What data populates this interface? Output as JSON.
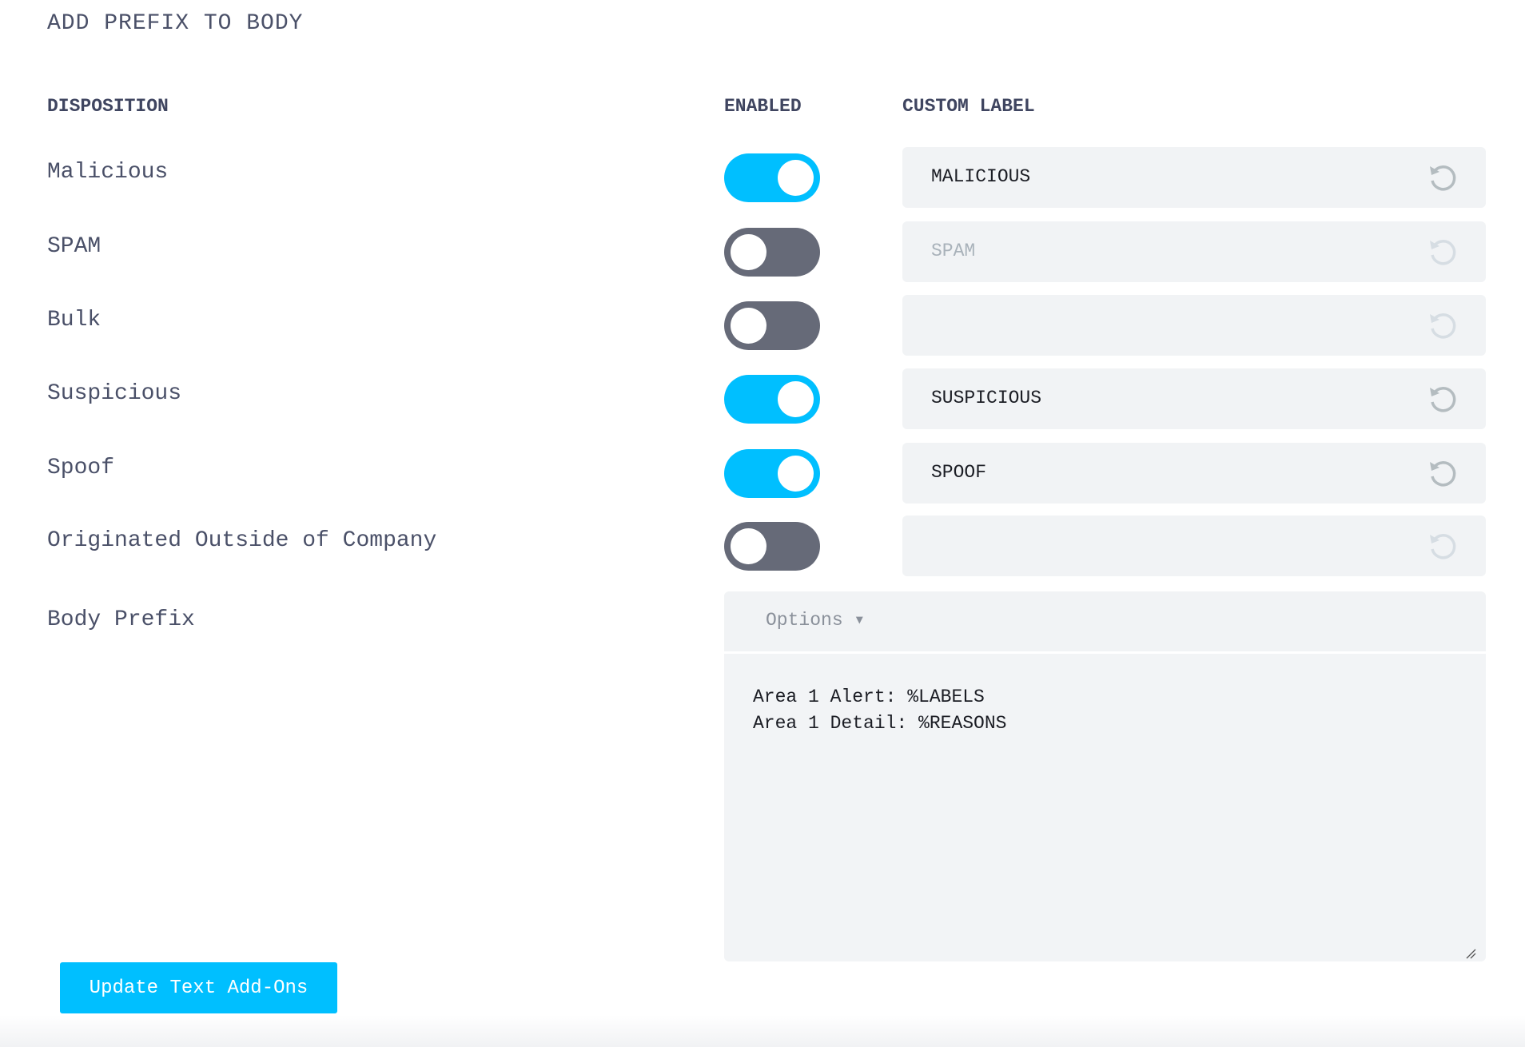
{
  "title": "ADD PREFIX TO BODY",
  "headers": {
    "disposition": "DISPOSITION",
    "enabled": "ENABLED",
    "custom_label": "CUSTOM LABEL"
  },
  "rows": [
    {
      "label": "Malicious",
      "enabled": true,
      "custom_label": "MALICIOUS"
    },
    {
      "label": "SPAM",
      "enabled": false,
      "custom_label": "SPAM"
    },
    {
      "label": "Bulk",
      "enabled": false,
      "custom_label": ""
    },
    {
      "label": "Suspicious",
      "enabled": true,
      "custom_label": "SUSPICIOUS"
    },
    {
      "label": "Spoof",
      "enabled": true,
      "custom_label": "SPOOF"
    },
    {
      "label": "Originated Outside of Company",
      "enabled": false,
      "custom_label": ""
    }
  ],
  "body_prefix": {
    "label": "Body Prefix",
    "options_label": "Options ▾",
    "text": "Area 1 Alert: %LABELS\nArea 1 Detail: %REASONS"
  },
  "submit_label": "Update Text Add-Ons",
  "colors": {
    "accent": "#00bfff",
    "toggle_off": "#666a78",
    "field_bg": "#f1f3f5"
  },
  "icons": {
    "reset": "reset-undo-icon",
    "dropdown": "triangle-down-icon"
  }
}
